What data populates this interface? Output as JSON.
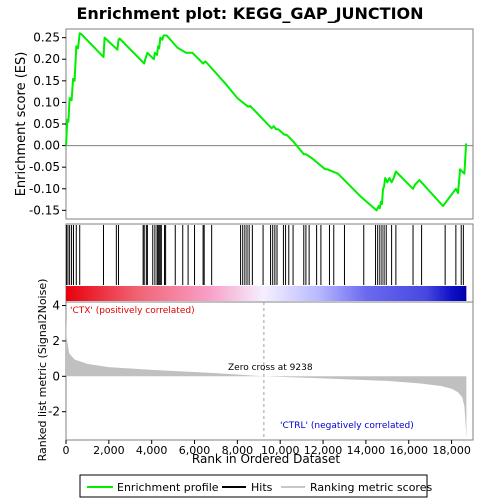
{
  "chart_data": {
    "type": "line",
    "title": "Enrichment plot: KEGG_GAP_JUNCTION",
    "es_panel": {
      "ylabel": "Enrichment score (ES)",
      "ylim": [
        -0.17,
        0.27
      ],
      "yticks": [
        -0.15,
        -0.1,
        -0.05,
        0.0,
        0.05,
        0.1,
        0.15,
        0.2,
        0.25
      ],
      "ytick_labels": [
        "-0.15",
        "-0.10",
        "-0.05",
        "0.00",
        "0.05",
        "0.10",
        "0.15",
        "0.20",
        "0.25"
      ],
      "line_color": "#00ee00",
      "series": [
        {
          "name": "Enrichment profile",
          "x": [
            0,
            60,
            110,
            170,
            260,
            330,
            400,
            480,
            560,
            640,
            720,
            1750,
            1800,
            2400,
            2450,
            2500,
            3650,
            3700,
            3800,
            3900,
            4100,
            4150,
            4250,
            4300,
            4350,
            4400,
            4500,
            4550,
            4700,
            5200,
            5600,
            5900,
            6400,
            6500,
            6600,
            7500,
            8000,
            8500,
            8600,
            9600,
            9700,
            9800,
            9900,
            10200,
            10300,
            10600,
            11100,
            11200,
            11500,
            12100,
            12200,
            12700,
            13800,
            14500,
            14600,
            14650,
            14700,
            14750,
            14800,
            14850,
            14900,
            14950,
            15000,
            15100,
            15200,
            15300,
            15400,
            16200,
            16300,
            16500,
            17600,
            18200,
            18300,
            18400,
            18600,
            18680
          ],
          "y": [
            0.0,
            0.06,
            0.055,
            0.11,
            0.105,
            0.155,
            0.15,
            0.23,
            0.225,
            0.26,
            0.258,
            0.205,
            0.25,
            0.222,
            0.245,
            0.248,
            0.19,
            0.2,
            0.215,
            0.21,
            0.2,
            0.215,
            0.21,
            0.23,
            0.225,
            0.25,
            0.245,
            0.255,
            0.255,
            0.227,
            0.215,
            0.215,
            0.19,
            0.195,
            0.19,
            0.14,
            0.11,
            0.09,
            0.092,
            0.04,
            0.045,
            0.038,
            0.038,
            0.025,
            0.025,
            0.01,
            -0.02,
            -0.02,
            -0.03,
            -0.055,
            -0.055,
            -0.065,
            -0.12,
            -0.15,
            -0.14,
            -0.145,
            -0.13,
            -0.135,
            -0.1,
            -0.095,
            -0.075,
            -0.08,
            -0.085,
            -0.075,
            -0.085,
            -0.075,
            -0.06,
            -0.1,
            -0.09,
            -0.08,
            -0.14,
            -0.1,
            -0.11,
            -0.055,
            -0.065,
            0.005
          ]
        }
      ]
    },
    "hits": [
      20,
      90,
      170,
      260,
      350,
      480,
      640,
      1750,
      2350,
      2450,
      3600,
      3650,
      3750,
      3800,
      4050,
      4150,
      4250,
      4300,
      4350,
      4400,
      4450,
      4600,
      4650,
      5100,
      5450,
      5700,
      6000,
      6400,
      6450,
      6800,
      8150,
      8250,
      8350,
      8450,
      8550,
      8700,
      9200,
      9550,
      9650,
      9750,
      9850,
      10150,
      10250,
      10400,
      10600,
      11100,
      11200,
      11350,
      11700,
      11900,
      12300,
      12500,
      13000,
      13900,
      14450,
      14550,
      14650,
      14750,
      14850,
      14950,
      15200,
      15400,
      16200,
      16600,
      17700,
      18200,
      18450,
      18550
    ],
    "heatmap": {
      "stops": [
        {
          "x": 0,
          "color": "#e8000a"
        },
        {
          "x": 3200,
          "color": "#f06070"
        },
        {
          "x": 6700,
          "color": "#f8a0c8"
        },
        {
          "x": 9238,
          "color": "#f4f0ff"
        },
        {
          "x": 11800,
          "color": "#b8b8ff"
        },
        {
          "x": 14000,
          "color": "#6a6af0"
        },
        {
          "x": 16800,
          "color": "#4848e0"
        },
        {
          "x": 18000,
          "color": "#1010c8"
        },
        {
          "x": 18690,
          "color": "#0000a8"
        }
      ]
    },
    "metric_panel": {
      "ylabel": "Ranked list metric (Signal2Noise)",
      "xlabel": "Rank in Ordered Dataset",
      "xlim": [
        0,
        19000
      ],
      "ylim": [
        -3.6,
        4.2
      ],
      "yticks": [
        -2,
        0,
        2,
        4
      ],
      "ytick_labels": [
        "-2",
        "0",
        "2",
        "4"
      ],
      "xticks": [
        0,
        2000,
        4000,
        6000,
        8000,
        10000,
        12000,
        14000,
        16000,
        18000
      ],
      "xtick_labels": [
        "0",
        "2,000",
        "4,000",
        "6,000",
        "8,000",
        "10,000",
        "12,000",
        "14,000",
        "16,000",
        "18,000"
      ],
      "zero_cross": 9238,
      "zero_cross_label": "Zero cross at 9238",
      "pos_label": "'CTX' (positively correlated)",
      "neg_label": "'CTRL' (negatively correlated)",
      "metric_profile": {
        "x": [
          0,
          30,
          150,
          400,
          1000,
          2000,
          4000,
          7000,
          9238,
          12000,
          15000,
          16500,
          17500,
          18000,
          18300,
          18500,
          18600,
          18650,
          18690
        ],
        "y": [
          3.5,
          2.2,
          1.3,
          0.95,
          0.7,
          0.52,
          0.36,
          0.18,
          0.0,
          -0.12,
          -0.26,
          -0.4,
          -0.55,
          -0.7,
          -0.9,
          -1.2,
          -1.7,
          -2.6,
          -3.5
        ]
      }
    },
    "legend": [
      {
        "label": "Enrichment profile",
        "color": "#00ee00"
      },
      {
        "label": "Hits",
        "color": "#000000"
      },
      {
        "label": "Ranking metric scores",
        "color": "#c8c8c8"
      }
    ]
  }
}
